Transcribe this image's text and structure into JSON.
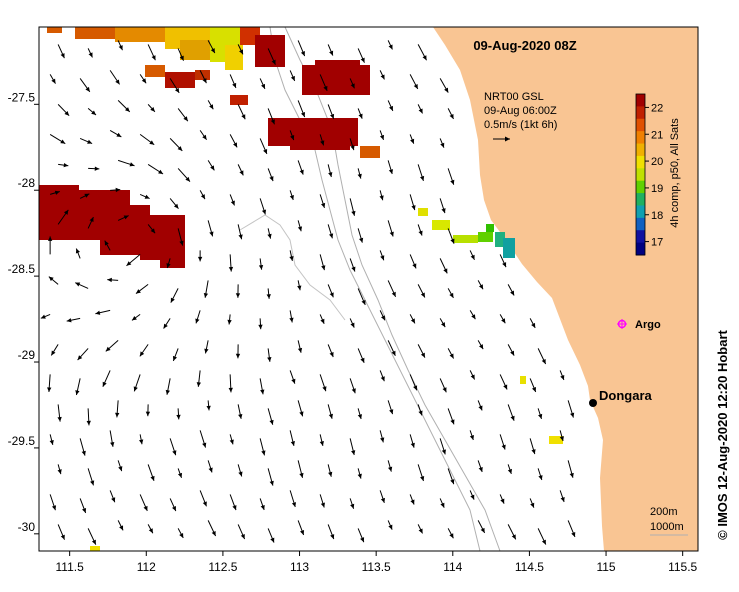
{
  "header": {
    "date_label": "09-Aug-2020 08Z"
  },
  "info": {
    "product": "NRT00 GSL",
    "time": "09-Aug 06:00Z",
    "scale": "0.5m/s (1kt 6h)"
  },
  "colorbar": {
    "label": "4h comp, p50, All Sats",
    "ticks": [
      "22",
      "21",
      "20",
      "19",
      "18",
      "17"
    ],
    "min": 16.5,
    "max": 22.5
  },
  "places": {
    "argo": "Argo",
    "dongara": "Dongara"
  },
  "contours": {
    "c200": "200m",
    "c1000": "1000m"
  },
  "credit": "© IMOS 12-Aug-2020 12:20 Hobart",
  "axes": {
    "x_ticks": [
      "111.5",
      "112",
      "112.5",
      "113",
      "113.5",
      "114",
      "114.5",
      "115",
      "115.5"
    ],
    "y_ticks": [
      "-27.5",
      "-28",
      "-28.5",
      "-29",
      "-29.5",
      "-30"
    ],
    "xlim": [
      111.3,
      115.6
    ],
    "ylim": [
      -30.1,
      -27.05
    ]
  },
  "colors": {
    "land": "#f9c593",
    "sst_hot": "#a10000",
    "sst_warm": "#d65a00",
    "sst_mid": "#f0e000",
    "arrow": "#000000",
    "argo": "#ff00ff"
  }
}
